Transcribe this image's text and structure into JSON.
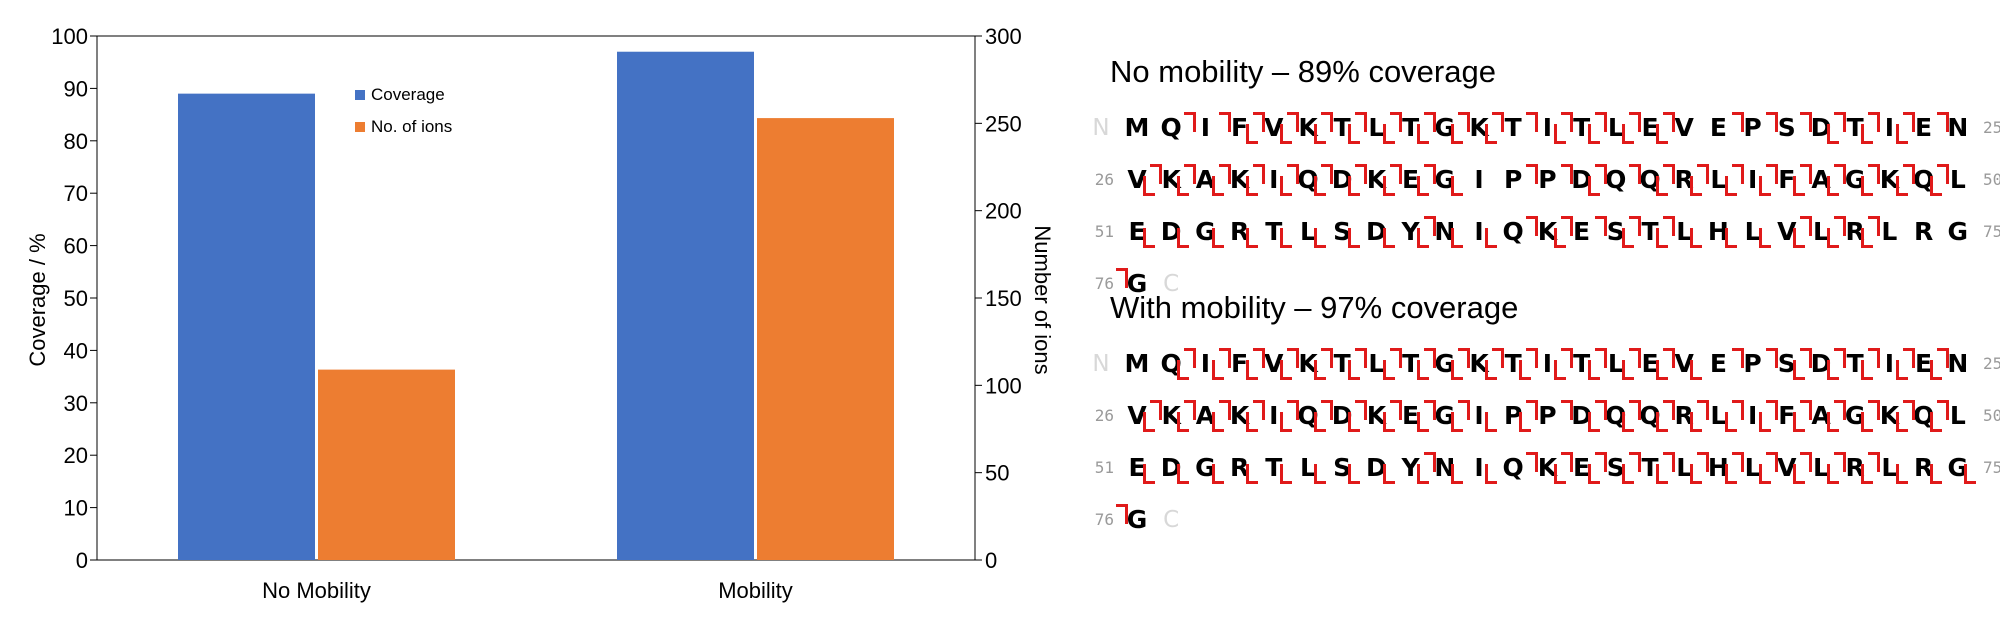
{
  "chart_data": {
    "type": "bar",
    "categories": [
      "No Mobility",
      "Mobility"
    ],
    "series": [
      {
        "name": "Coverage",
        "axis": "left",
        "color": "#4472c4",
        "values": [
          89,
          97
        ]
      },
      {
        "name": "No. of ions",
        "axis": "right",
        "color": "#ed7d31",
        "values": [
          109,
          253
        ]
      }
    ],
    "ylabel": "Coverage / %",
    "ylim": [
      0,
      100
    ],
    "yticks": [
      0,
      10,
      20,
      30,
      40,
      50,
      60,
      70,
      80,
      90,
      100
    ],
    "y2label": "Number of ions",
    "y2lim": [
      0,
      300
    ],
    "y2ticks": [
      0,
      50,
      100,
      150,
      200,
      250,
      300
    ],
    "legend_position": "top-center",
    "grid": false
  },
  "sequence_maps": [
    {
      "title": "No mobility – 89% coverage",
      "n_term": "N",
      "c_term": "C",
      "rows": [
        {
          "start": "",
          "end": "25",
          "residues": "MQIFVKTLTGKTITLEVEPSDTIEN",
          "b": "0001111111101111000011100",
          "c": "0011111111111111101111111"
        },
        {
          "start": "26",
          "end": "50",
          "residues": "VKAKIQDKEGIPPDQQRLIFAGKQL",
          "b": "1111111111000101111111110",
          "c": "0111111111001111111111111"
        },
        {
          "start": "51",
          "end": "75",
          "residues": "EDGRTLSDYNIQKESTLHLVLRLRG",
          "b": "1111111111101011111111000",
          "c": "0000000001001111100011100"
        },
        {
          "start": "76",
          "end": "",
          "residues": "G",
          "b": "0",
          "c": "1"
        }
      ]
    },
    {
      "title": "With mobility – 97% coverage",
      "n_term": "N",
      "c_term": "C",
      "rows": [
        {
          "start": "",
          "end": "25",
          "residues": "MQIFVKTLTGKTITLEVEPSDTIEN",
          "b": "0111111111111111100111110",
          "c": "0011111111111111101111111"
        },
        {
          "start": "26",
          "end": "50",
          "residues": "VKAKIQDKEGIPPDQQRLIFAGKQL",
          "b": "1111111111110111111111110",
          "c": "0111111111101111111111111"
        },
        {
          "start": "51",
          "end": "75",
          "residues": "EDGRTLSDYNIQKESTLHLVLRLRG",
          "b": "1111111111101111111111111",
          "c": "0000000001001111111111100"
        },
        {
          "start": "76",
          "end": "",
          "residues": "G",
          "b": "0",
          "c": "1"
        }
      ]
    }
  ]
}
